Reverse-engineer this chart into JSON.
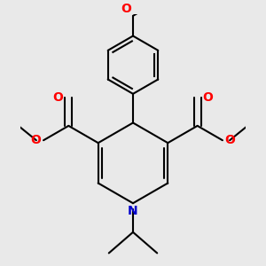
{
  "bg_color": "#e9e9e9",
  "line_color": "#000000",
  "o_color": "#ff0000",
  "n_color": "#0000cd",
  "lw": 1.5,
  "fig_size": [
    3.0,
    3.0
  ],
  "dpi": 100,
  "xlim": [
    -2.8,
    2.8
  ],
  "ylim": [
    -3.0,
    3.2
  ]
}
